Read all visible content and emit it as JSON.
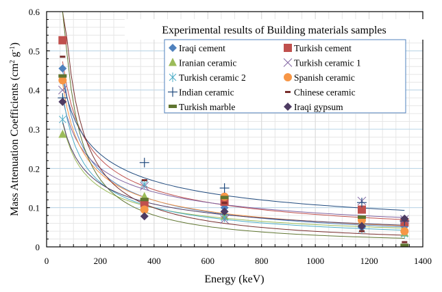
{
  "chart_data": {
    "type": "scatter",
    "title": "Experimental results of Building materials samples",
    "xlabel": "Energy (keV)",
    "ylabel": "Mass Attenuation Coefficients (cm² g⁻¹)",
    "ylabel_parts": {
      "main": "Mass Attenuation Coefficients (cm",
      "sup1": "2",
      "mid": " g",
      "sup2": "-1",
      "end": ")"
    },
    "xlim": [
      0,
      1400
    ],
    "ylim": [
      0,
      0.6
    ],
    "xticks": [
      0,
      200,
      400,
      600,
      800,
      1000,
      1200,
      1400
    ],
    "xtick_labels": [
      "0",
      "200",
      "400",
      "600",
      "800",
      "1000",
      "1200",
      "1400"
    ],
    "yticks": [
      0,
      0.1,
      0.2,
      0.3,
      0.4,
      0.5,
      0.6
    ],
    "ytick_labels": [
      "0",
      "0.1",
      "0.2",
      "0.3",
      "0.4",
      "0.5",
      "0.6"
    ],
    "grid": true,
    "trendlines": "power fit per series",
    "legend_position": "top-right (inside plot, 2 columns)",
    "x": [
      59.5,
      364,
      662,
      1173,
      1332
    ],
    "series": [
      {
        "name": "Iraqi cement",
        "marker": "diamond",
        "color": "#4F81BD",
        "values": [
          0.455,
          0.115,
          0.1,
          0.05,
          0.052
        ]
      },
      {
        "name": "Turkish cement",
        "marker": "square",
        "color": "#C0504D",
        "values": [
          0.527,
          0.112,
          0.115,
          0.095,
          0.063
        ]
      },
      {
        "name": "Iranian ceramic",
        "marker": "triangle",
        "color": "#9BBB59",
        "values": [
          0.287,
          0.128,
          0.078,
          0.06,
          0.035
        ]
      },
      {
        "name": "Turkish ceramic 1",
        "marker": "x",
        "color": "#8064A2",
        "values": [
          0.4,
          0.155,
          0.07,
          0.117,
          0.07
        ]
      },
      {
        "name": "Turkish ceramic 2",
        "marker": "star",
        "color": "#4BACC6",
        "values": [
          0.325,
          0.16,
          0.075,
          0.045,
          0.033
        ]
      },
      {
        "name": "Spanish ceramic",
        "marker": "circle",
        "color": "#F79646",
        "values": [
          0.425,
          0.095,
          0.128,
          0.068,
          0.04
        ]
      },
      {
        "name": "Indian ceramic",
        "marker": "plus",
        "color": "#1F497D",
        "values": [
          0.38,
          0.215,
          0.15,
          0.113,
          0.066
        ]
      },
      {
        "name": "Chinese ceramic",
        "marker": "dash",
        "color": "#772C2A",
        "values": [
          0.485,
          0.17,
          0.112,
          0.04,
          0.012
        ]
      },
      {
        "name": "Turkish marble",
        "marker": "bar",
        "color": "#5F7530",
        "values": [
          0.435,
          0.12,
          0.125,
          0.075,
          0.003
        ]
      },
      {
        "name": "Iraqi gypsum",
        "marker": "diamond",
        "color": "#4D3B62",
        "values": [
          0.37,
          0.078,
          0.09,
          0.053,
          0.072
        ]
      }
    ]
  }
}
